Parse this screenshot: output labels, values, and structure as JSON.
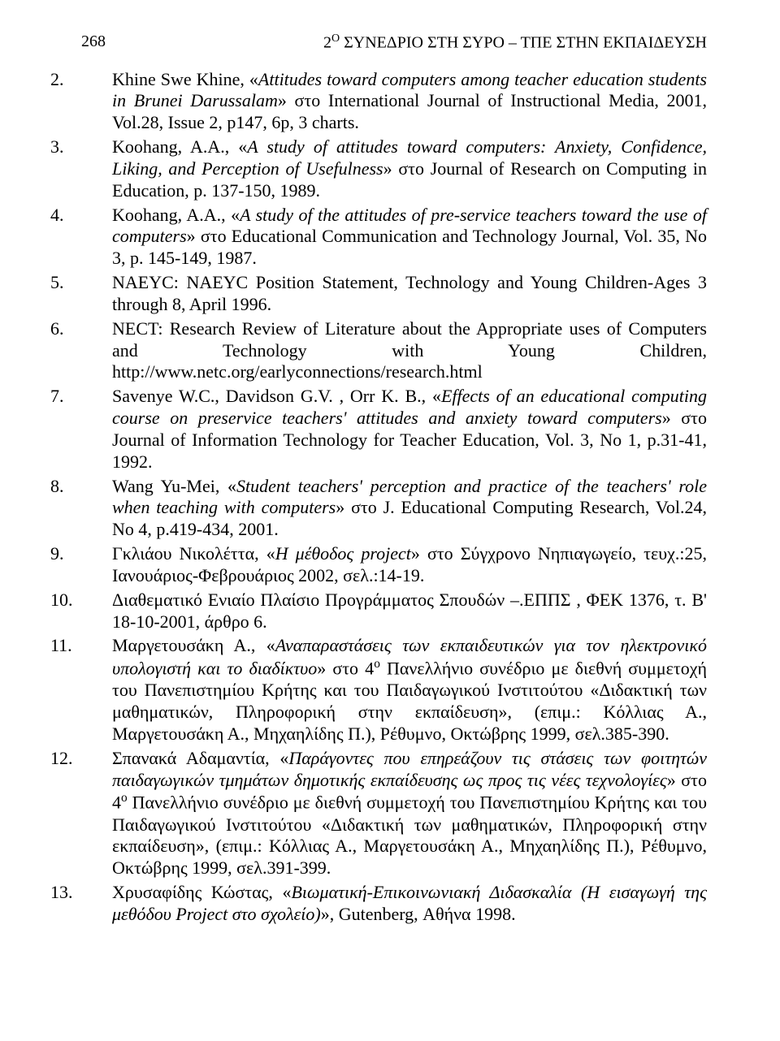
{
  "header": {
    "page_number": "268",
    "running_title_prefix": "2",
    "running_title_super": "Ο",
    "running_title_rest": " ΣΥΝΕΔΡΙΟ ΣΤΗ ΣΥΡΟ – ΤΠΕ ΣΤΗΝ ΕΚΠΑΙΔΕΥΣΗ"
  },
  "references": [
    {
      "num": "2.",
      "html": "Khine Swe Khine, «<em>Attitudes toward computers among teacher education students in Brunei Darussalam</em>» στο International Journal of Instructional Media, 2001, Vol.28, Issue 2, p147, 6p, 3 charts."
    },
    {
      "num": "3.",
      "html": "Koohang, A.A., «<em>A study of attitudes toward computers: Anxiety, Confidence, Liking, and Perception of Usefulness</em>» στο Journal of Research on Computing in Education, p. 137-150, 1989."
    },
    {
      "num": "4.",
      "html": "Koohang, A.A., «<em>A study of the attitudes of pre-service teachers toward the use of computers</em>» στο Educational Communication and Technology Journal, Vol. 35, No 3, p. 145-149, 1987."
    },
    {
      "num": "5.",
      "html": "NAEYC: NAEYC Position Statement, Technology and Young Children-Ages 3 through 8, April 1996."
    },
    {
      "num": "6.",
      "html": "NECT: Research Review of Literature about the Appropriate uses of Computers and Technology with Young Children, http://www.netc.org/earlyconnections/research.html"
    },
    {
      "num": "7.",
      "html": "Savenye W.C., Davidson G.V. , Orr K. B., «<em>Effects of an educational computing course on preservice teachers' attitudes and anxiety toward computers</em>» στο Journal of Information Technology for Teacher Education, Vol. 3, No 1, p.31-41, 1992."
    },
    {
      "num": "8.",
      "html": "Wang Yu-Mei, «<em>Student teachers' perception and practice of the teachers' role when teaching with computers</em>» στο J. Educational Computing Research, Vol.24, No 4, p.419-434, 2001."
    },
    {
      "num": "9.",
      "html": "Γκλιάου Νικολέττα, «<em>Η μέθοδος project</em>» στο Σύγχρονο Νηπιαγωγείο, τευχ.:25, Ιανουάριος-Φεβρουάριος 2002, σελ.:14-19."
    },
    {
      "num": "10.",
      "html": "Διαθεματικό Ενιαίο Πλαίσιο Προγράμματος Σπουδών –.ΕΠΠΣ , ΦΕΚ 1376, τ. Β' 18-10-2001, άρθρο 6."
    },
    {
      "num": "11.",
      "html": "Μαργετουσάκη Α., «<em>Αναπαραστάσεις των εκπαιδευτικών για τον ηλεκτρονικό υπολογιστή και το διαδίκτυο</em>» στο 4<span class=\"sup\">ο</span> Πανελλήνιο συνέδριο με διεθνή συμμετοχή του Πανεπιστημίου Κρήτης και του Παιδαγωγικού Ινστιτούτου «Διδακτική των μαθηματικών, Πληροφορική στην εκπαίδευση», (επιμ.: Κόλλιας Α., Μαργετουσάκη Α., Μηχαηλίδης Π.), Ρέθυμνο, Οκτώβρης 1999, σελ.385-390."
    },
    {
      "num": "12.",
      "html": "Σπανακά Αδαμαντία, «<em>Παράγοντες που επηρεάζουν τις στάσεις των φοιτητών παιδαγωγικών τμημάτων δημοτικής εκπαίδευσης ως προς τις νέες τεχνολογίες</em>» στο 4<span class=\"sup\">ο</span> Πανελλήνιο συνέδριο με διεθνή συμμετοχή του Πανεπιστημίου Κρήτης και του Παιδαγωγικού Ινστιτούτου «Διδακτική των μαθηματικών, Πληροφορική στην εκπαίδευση», (επιμ.: Κόλλιας Α., Μαργετουσάκη Α., Μηχαηλίδης Π.), Ρέθυμνο, Οκτώβρης 1999, σελ.391-399."
    },
    {
      "num": "13.",
      "html": "Χρυσαφίδης Κώστας, «<em>Βιωματική-Επικοινωνιακή Διδασκαλία (Η εισαγωγή της μεθόδου Project στο σχολείο)</em>», Gutenberg, Αθήνα 1998."
    }
  ]
}
